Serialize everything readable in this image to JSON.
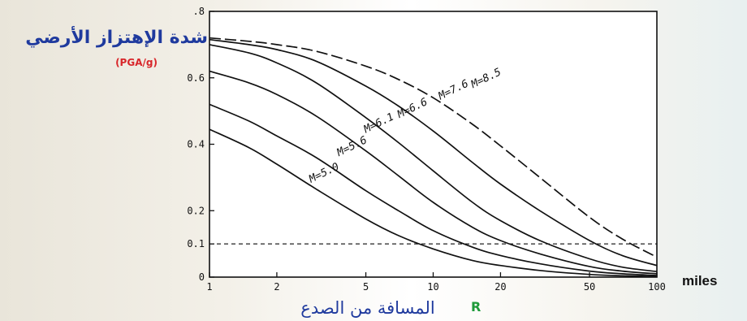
{
  "chart_data": {
    "type": "line",
    "title": "",
    "ylabel": "شدة الإهتزاز الأرضي",
    "ylabel_unit": "(PGA/g)",
    "xlabel": "المسافة من الصدع",
    "xlabel_symbol": "R",
    "xunit": "miles",
    "xscale": "log",
    "xlim": [
      1,
      100
    ],
    "ylim": [
      0,
      0.8
    ],
    "xticks": [
      {
        "v": 1,
        "label": "1"
      },
      {
        "v": 2,
        "label": "2"
      },
      {
        "v": 5,
        "label": "5"
      },
      {
        "v": 10,
        "label": "10"
      },
      {
        "v": 20,
        "label": "20"
      },
      {
        "v": 50,
        "label": "50"
      },
      {
        "v": 100,
        "label": "100"
      }
    ],
    "yticks": [
      {
        "v": 0,
        "label": "0"
      },
      {
        "v": 0.1,
        "label": "0.1"
      },
      {
        "v": 0.2,
        "label": "0.2"
      },
      {
        "v": 0.4,
        "label": "0.4"
      },
      {
        "v": 0.6,
        "label": "0.6"
      },
      {
        "v": 0.8,
        "label": ".8"
      }
    ],
    "reference_line": {
      "y": 0.1,
      "style": "dashed"
    },
    "series": [
      {
        "name": "M=5.0",
        "x": [
          1,
          1.5,
          2,
          3,
          5,
          7,
          10,
          15,
          20,
          30,
          50,
          70,
          100
        ],
        "y": [
          0.445,
          0.39,
          0.34,
          0.265,
          0.175,
          0.125,
          0.085,
          0.05,
          0.035,
          0.02,
          0.008,
          0.004,
          0.002
        ],
        "label_at": {
          "x": 3.3,
          "y": 0.305
        }
      },
      {
        "name": "M=5.6",
        "x": [
          1,
          1.5,
          2,
          3,
          5,
          7,
          10,
          15,
          20,
          30,
          50,
          70,
          100
        ],
        "y": [
          0.52,
          0.47,
          0.425,
          0.36,
          0.26,
          0.2,
          0.14,
          0.09,
          0.065,
          0.04,
          0.018,
          0.01,
          0.005
        ],
        "label_at": {
          "x": 4.4,
          "y": 0.385
        }
      },
      {
        "name": "M=6.1",
        "x": [
          1,
          1.5,
          2,
          3,
          5,
          7,
          10,
          15,
          20,
          30,
          50,
          70,
          100
        ],
        "y": [
          0.62,
          0.585,
          0.55,
          0.485,
          0.38,
          0.305,
          0.225,
          0.15,
          0.11,
          0.07,
          0.032,
          0.018,
          0.01
        ],
        "label_at": {
          "x": 5.8,
          "y": 0.455
        }
      },
      {
        "name": "M=6.6",
        "x": [
          1,
          1.5,
          2,
          3,
          5,
          7,
          10,
          15,
          20,
          30,
          50,
          70,
          100
        ],
        "y": [
          0.7,
          0.675,
          0.645,
          0.585,
          0.48,
          0.405,
          0.32,
          0.225,
          0.17,
          0.11,
          0.055,
          0.03,
          0.017
        ],
        "label_at": {
          "x": 8.2,
          "y": 0.5
        }
      },
      {
        "name": "M=7.6",
        "x": [
          1,
          1.5,
          2,
          3,
          5,
          7,
          10,
          15,
          20,
          30,
          50,
          70,
          100
        ],
        "y": [
          0.715,
          0.7,
          0.685,
          0.65,
          0.575,
          0.515,
          0.44,
          0.345,
          0.28,
          0.2,
          0.11,
          0.065,
          0.035
        ],
        "label_at": {
          "x": 12.5,
          "y": 0.555
        }
      },
      {
        "name": "M=8.5",
        "dashed": true,
        "x": [
          1,
          1.5,
          2,
          3,
          5,
          7,
          10,
          15,
          20,
          30,
          50,
          70,
          100
        ],
        "y": [
          0.72,
          0.71,
          0.7,
          0.68,
          0.635,
          0.595,
          0.54,
          0.46,
          0.395,
          0.3,
          0.18,
          0.115,
          0.06
        ],
        "label_at": {
          "x": 17.5,
          "y": 0.59
        }
      }
    ]
  }
}
